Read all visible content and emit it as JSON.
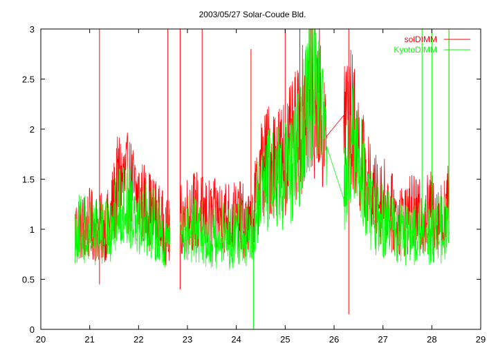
{
  "chart_data": {
    "type": "line",
    "title": "2003/05/27 Solar-Coude Bld.",
    "xlabel": "",
    "ylabel": "",
    "xlim": [
      20,
      29
    ],
    "ylim": [
      0,
      3
    ],
    "xticks": [
      20,
      21,
      22,
      23,
      24,
      25,
      26,
      27,
      28,
      29
    ],
    "yticks": [
      0,
      0.5,
      1,
      1.5,
      2,
      2.5,
      3
    ],
    "ytick_labels": [
      "0",
      "0.5",
      "1",
      "1.5",
      "2",
      "2.5",
      "3"
    ],
    "legend_position": "top-right",
    "grid": false,
    "series": [
      {
        "name": "solDIMM",
        "color": "#ff0000",
        "x": [
          20.7,
          21.0,
          21.2,
          21.4,
          21.6,
          21.8,
          22.0,
          22.2,
          22.4,
          22.6,
          22.9,
          23.1,
          23.3,
          23.5,
          23.7,
          23.9,
          24.1,
          24.3,
          24.5,
          24.7,
          24.9,
          25.1,
          25.3,
          25.5,
          25.7,
          25.8,
          26.3,
          26.4,
          26.6,
          26.8,
          27.0,
          27.2,
          27.4,
          27.6,
          27.8,
          28.0,
          28.2,
          28.35
        ],
        "y": [
          1.0,
          1.05,
          1.0,
          1.05,
          1.5,
          1.45,
          1.3,
          1.2,
          1.1,
          0.95,
          1.1,
          1.2,
          1.15,
          1.1,
          1.15,
          1.1,
          1.1,
          1.0,
          1.6,
          1.7,
          1.7,
          1.8,
          2.0,
          2.4,
          2.2,
          1.9,
          2.2,
          2.0,
          1.6,
          1.3,
          1.3,
          1.15,
          1.1,
          1.15,
          1.1,
          1.2,
          1.1,
          1.25
        ],
        "spikes": [
          [
            21.2,
            3.0
          ],
          [
            21.2,
            0.45
          ],
          [
            22.6,
            3.0
          ],
          [
            22.85,
            3.0
          ],
          [
            22.85,
            0.4
          ],
          [
            23.3,
            3.0
          ],
          [
            24.3,
            2.8
          ],
          [
            25.0,
            3.0
          ],
          [
            25.3,
            3.0
          ],
          [
            25.7,
            3.0
          ],
          [
            26.3,
            3.0
          ],
          [
            26.3,
            0.15
          ],
          [
            28.35,
            3.0
          ]
        ]
      },
      {
        "name": "KyotoDIMM",
        "color": "#00ff00",
        "x": [
          20.7,
          21.0,
          21.2,
          21.4,
          21.6,
          21.8,
          22.0,
          22.2,
          22.4,
          22.6,
          22.9,
          23.1,
          23.3,
          23.5,
          23.7,
          23.9,
          24.1,
          24.3,
          24.5,
          24.7,
          24.9,
          25.1,
          25.3,
          25.5,
          25.7,
          25.8,
          26.0,
          26.2,
          26.4,
          26.6,
          26.8,
          27.0,
          27.2,
          27.4,
          27.6,
          27.8,
          28.0,
          28.2,
          28.35
        ],
        "y": [
          1.0,
          1.0,
          0.95,
          1.0,
          1.2,
          1.25,
          1.15,
          1.1,
          1.0,
          0.9,
          1.0,
          1.0,
          0.95,
          0.9,
          0.95,
          0.9,
          1.0,
          0.9,
          1.4,
          1.5,
          1.5,
          1.6,
          1.8,
          2.4,
          2.2,
          1.9,
          1.6,
          1.3,
          1.9,
          1.5,
          1.1,
          1.1,
          1.0,
          0.95,
          0.95,
          0.95,
          1.0,
          1.0,
          1.0
        ],
        "spikes": [
          [
            24.35,
            0.0
          ],
          [
            25.5,
            3.0
          ],
          [
            25.6,
            3.0
          ],
          [
            27.8,
            3.0
          ],
          [
            28.0,
            3.0
          ],
          [
            28.35,
            3.0
          ]
        ]
      }
    ]
  }
}
